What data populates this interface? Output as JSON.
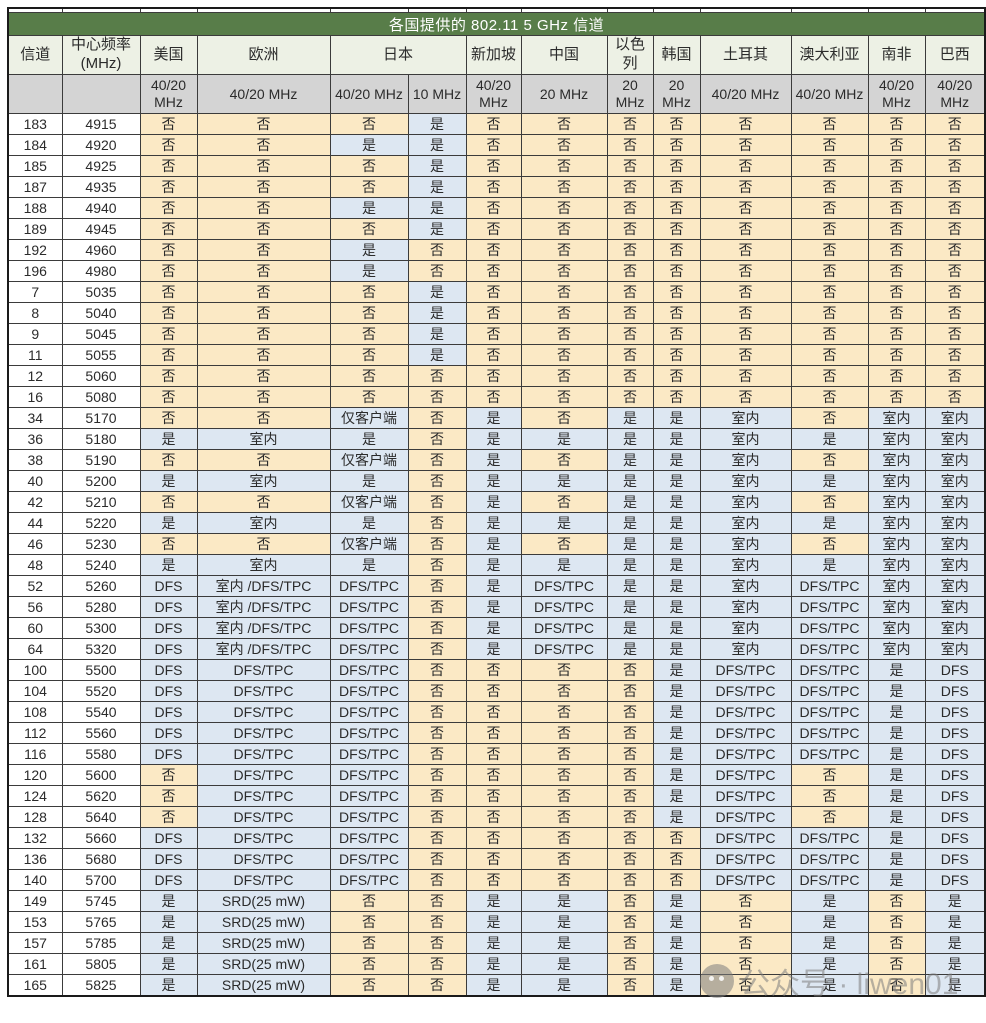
{
  "table": {
    "title": "各国提供的 802.11 5 GHz 信道",
    "header_groups": [
      {
        "label": "信道",
        "colspan": 1
      },
      {
        "label": "中心频率 (MHz)",
        "colspan": 1
      },
      {
        "label": "美国",
        "colspan": 1
      },
      {
        "label": "欧洲",
        "colspan": 1
      },
      {
        "label": "日本",
        "colspan": 2
      },
      {
        "label": "新加坡",
        "colspan": 1
      },
      {
        "label": "中国",
        "colspan": 1
      },
      {
        "label": "以色列",
        "colspan": 1
      },
      {
        "label": "韩国",
        "colspan": 1
      },
      {
        "label": "土耳其",
        "colspan": 1
      },
      {
        "label": "澳大利亚",
        "colspan": 1
      },
      {
        "label": "南非",
        "colspan": 1
      },
      {
        "label": "巴西",
        "colspan": 1
      }
    ],
    "subheader": [
      "",
      "",
      "40/20 MHz",
      "40/20 MHz",
      "40/20 MHz",
      "10 MHz",
      "40/20 MHz",
      "20 MHz",
      "20 MHz",
      "20 MHz",
      "40/20 MHz",
      "40/20 MHz",
      "40/20 MHz",
      "40/20 MHz"
    ],
    "rows": [
      {
        "channel": "183",
        "freq": "4915",
        "values": [
          "否",
          "否",
          "否",
          "是",
          "否",
          "否",
          "否",
          "否",
          "否",
          "否",
          "否",
          "否"
        ]
      },
      {
        "channel": "184",
        "freq": "4920",
        "values": [
          "否",
          "否",
          "是",
          "是",
          "否",
          "否",
          "否",
          "否",
          "否",
          "否",
          "否",
          "否"
        ]
      },
      {
        "channel": "185",
        "freq": "4925",
        "values": [
          "否",
          "否",
          "否",
          "是",
          "否",
          "否",
          "否",
          "否",
          "否",
          "否",
          "否",
          "否"
        ]
      },
      {
        "channel": "187",
        "freq": "4935",
        "values": [
          "否",
          "否",
          "否",
          "是",
          "否",
          "否",
          "否",
          "否",
          "否",
          "否",
          "否",
          "否"
        ]
      },
      {
        "channel": "188",
        "freq": "4940",
        "values": [
          "否",
          "否",
          "是",
          "是",
          "否",
          "否",
          "否",
          "否",
          "否",
          "否",
          "否",
          "否"
        ]
      },
      {
        "channel": "189",
        "freq": "4945",
        "values": [
          "否",
          "否",
          "否",
          "是",
          "否",
          "否",
          "否",
          "否",
          "否",
          "否",
          "否",
          "否"
        ]
      },
      {
        "channel": "192",
        "freq": "4960",
        "values": [
          "否",
          "否",
          "是",
          "否",
          "否",
          "否",
          "否",
          "否",
          "否",
          "否",
          "否",
          "否"
        ]
      },
      {
        "channel": "196",
        "freq": "4980",
        "values": [
          "否",
          "否",
          "是",
          "否",
          "否",
          "否",
          "否",
          "否",
          "否",
          "否",
          "否",
          "否"
        ]
      },
      {
        "channel": "7",
        "freq": "5035",
        "values": [
          "否",
          "否",
          "否",
          "是",
          "否",
          "否",
          "否",
          "否",
          "否",
          "否",
          "否",
          "否"
        ]
      },
      {
        "channel": "8",
        "freq": "5040",
        "values": [
          "否",
          "否",
          "否",
          "是",
          "否",
          "否",
          "否",
          "否",
          "否",
          "否",
          "否",
          "否"
        ]
      },
      {
        "channel": "9",
        "freq": "5045",
        "values": [
          "否",
          "否",
          "否",
          "是",
          "否",
          "否",
          "否",
          "否",
          "否",
          "否",
          "否",
          "否"
        ]
      },
      {
        "channel": "11",
        "freq": "5055",
        "values": [
          "否",
          "否",
          "否",
          "是",
          "否",
          "否",
          "否",
          "否",
          "否",
          "否",
          "否",
          "否"
        ]
      },
      {
        "channel": "12",
        "freq": "5060",
        "values": [
          "否",
          "否",
          "否",
          "否",
          "否",
          "否",
          "否",
          "否",
          "否",
          "否",
          "否",
          "否"
        ]
      },
      {
        "channel": "16",
        "freq": "5080",
        "values": [
          "否",
          "否",
          "否",
          "否",
          "否",
          "否",
          "否",
          "否",
          "否",
          "否",
          "否",
          "否"
        ]
      },
      {
        "channel": "34",
        "freq": "5170",
        "values": [
          "否",
          "否",
          "仅客户端",
          "否",
          "是",
          "否",
          "是",
          "是",
          "室内",
          "否",
          "室内",
          "室内"
        ]
      },
      {
        "channel": "36",
        "freq": "5180",
        "values": [
          "是",
          "室内",
          "是",
          "否",
          "是",
          "是",
          "是",
          "是",
          "室内",
          "是",
          "室内",
          "室内"
        ]
      },
      {
        "channel": "38",
        "freq": "5190",
        "values": [
          "否",
          "否",
          "仅客户端",
          "否",
          "是",
          "否",
          "是",
          "是",
          "室内",
          "否",
          "室内",
          "室内"
        ]
      },
      {
        "channel": "40",
        "freq": "5200",
        "values": [
          "是",
          "室内",
          "是",
          "否",
          "是",
          "是",
          "是",
          "是",
          "室内",
          "是",
          "室内",
          "室内"
        ]
      },
      {
        "channel": "42",
        "freq": "5210",
        "values": [
          "否",
          "否",
          "仅客户端",
          "否",
          "是",
          "否",
          "是",
          "是",
          "室内",
          "否",
          "室内",
          "室内"
        ]
      },
      {
        "channel": "44",
        "freq": "5220",
        "values": [
          "是",
          "室内",
          "是",
          "否",
          "是",
          "是",
          "是",
          "是",
          "室内",
          "是",
          "室内",
          "室内"
        ]
      },
      {
        "channel": "46",
        "freq": "5230",
        "values": [
          "否",
          "否",
          "仅客户端",
          "否",
          "是",
          "否",
          "是",
          "是",
          "室内",
          "否",
          "室内",
          "室内"
        ]
      },
      {
        "channel": "48",
        "freq": "5240",
        "values": [
          "是",
          "室内",
          "是",
          "否",
          "是",
          "是",
          "是",
          "是",
          "室内",
          "是",
          "室内",
          "室内"
        ]
      },
      {
        "channel": "52",
        "freq": "5260",
        "values": [
          "DFS",
          "室内 /DFS/TPC",
          "DFS/TPC",
          "否",
          "是",
          "DFS/TPC",
          "是",
          "是",
          "室内",
          "DFS/TPC",
          "室内",
          "室内"
        ]
      },
      {
        "channel": "56",
        "freq": "5280",
        "values": [
          "DFS",
          "室内 /DFS/TPC",
          "DFS/TPC",
          "否",
          "是",
          "DFS/TPC",
          "是",
          "是",
          "室内",
          "DFS/TPC",
          "室内",
          "室内"
        ]
      },
      {
        "channel": "60",
        "freq": "5300",
        "values": [
          "DFS",
          "室内 /DFS/TPC",
          "DFS/TPC",
          "否",
          "是",
          "DFS/TPC",
          "是",
          "是",
          "室内",
          "DFS/TPC",
          "室内",
          "室内"
        ]
      },
      {
        "channel": "64",
        "freq": "5320",
        "values": [
          "DFS",
          "室内 /DFS/TPC",
          "DFS/TPC",
          "否",
          "是",
          "DFS/TPC",
          "是",
          "是",
          "室内",
          "DFS/TPC",
          "室内",
          "室内"
        ]
      },
      {
        "channel": "100",
        "freq": "5500",
        "values": [
          "DFS",
          "DFS/TPC",
          "DFS/TPC",
          "否",
          "否",
          "否",
          "否",
          "是",
          "DFS/TPC",
          "DFS/TPC",
          "是",
          "DFS"
        ]
      },
      {
        "channel": "104",
        "freq": "5520",
        "values": [
          "DFS",
          "DFS/TPC",
          "DFS/TPC",
          "否",
          "否",
          "否",
          "否",
          "是",
          "DFS/TPC",
          "DFS/TPC",
          "是",
          "DFS"
        ]
      },
      {
        "channel": "108",
        "freq": "5540",
        "values": [
          "DFS",
          "DFS/TPC",
          "DFS/TPC",
          "否",
          "否",
          "否",
          "否",
          "是",
          "DFS/TPC",
          "DFS/TPC",
          "是",
          "DFS"
        ]
      },
      {
        "channel": "112",
        "freq": "5560",
        "values": [
          "DFS",
          "DFS/TPC",
          "DFS/TPC",
          "否",
          "否",
          "否",
          "否",
          "是",
          "DFS/TPC",
          "DFS/TPC",
          "是",
          "DFS"
        ]
      },
      {
        "channel": "116",
        "freq": "5580",
        "values": [
          "DFS",
          "DFS/TPC",
          "DFS/TPC",
          "否",
          "否",
          "否",
          "否",
          "是",
          "DFS/TPC",
          "DFS/TPC",
          "是",
          "DFS"
        ]
      },
      {
        "channel": "120",
        "freq": "5600",
        "values": [
          "否",
          "DFS/TPC",
          "DFS/TPC",
          "否",
          "否",
          "否",
          "否",
          "是",
          "DFS/TPC",
          "否",
          "是",
          "DFS"
        ]
      },
      {
        "channel": "124",
        "freq": "5620",
        "values": [
          "否",
          "DFS/TPC",
          "DFS/TPC",
          "否",
          "否",
          "否",
          "否",
          "是",
          "DFS/TPC",
          "否",
          "是",
          "DFS"
        ]
      },
      {
        "channel": "128",
        "freq": "5640",
        "values": [
          "否",
          "DFS/TPC",
          "DFS/TPC",
          "否",
          "否",
          "否",
          "否",
          "是",
          "DFS/TPC",
          "否",
          "是",
          "DFS"
        ]
      },
      {
        "channel": "132",
        "freq": "5660",
        "values": [
          "DFS",
          "DFS/TPC",
          "DFS/TPC",
          "否",
          "否",
          "否",
          "否",
          "否",
          "DFS/TPC",
          "DFS/TPC",
          "是",
          "DFS"
        ]
      },
      {
        "channel": "136",
        "freq": "5680",
        "values": [
          "DFS",
          "DFS/TPC",
          "DFS/TPC",
          "否",
          "否",
          "否",
          "否",
          "否",
          "DFS/TPC",
          "DFS/TPC",
          "是",
          "DFS"
        ]
      },
      {
        "channel": "140",
        "freq": "5700",
        "values": [
          "DFS",
          "DFS/TPC",
          "DFS/TPC",
          "否",
          "否",
          "否",
          "否",
          "否",
          "DFS/TPC",
          "DFS/TPC",
          "是",
          "DFS"
        ]
      },
      {
        "channel": "149",
        "freq": "5745",
        "values": [
          "是",
          "SRD(25 mW)",
          "否",
          "否",
          "是",
          "是",
          "否",
          "是",
          "否",
          "是",
          "否",
          "是"
        ]
      },
      {
        "channel": "153",
        "freq": "5765",
        "values": [
          "是",
          "SRD(25 mW)",
          "否",
          "否",
          "是",
          "是",
          "否",
          "是",
          "否",
          "是",
          "否",
          "是"
        ]
      },
      {
        "channel": "157",
        "freq": "5785",
        "values": [
          "是",
          "SRD(25 mW)",
          "否",
          "否",
          "是",
          "是",
          "否",
          "是",
          "否",
          "是",
          "否",
          "是"
        ]
      },
      {
        "channel": "161",
        "freq": "5805",
        "values": [
          "是",
          "SRD(25 mW)",
          "否",
          "否",
          "是",
          "是",
          "否",
          "是",
          "否",
          "是",
          "否",
          "是"
        ]
      },
      {
        "channel": "165",
        "freq": "5825",
        "values": [
          "是",
          "SRD(25 mW)",
          "否",
          "否",
          "是",
          "是",
          "否",
          "是",
          "否",
          "是",
          "否",
          "是"
        ]
      }
    ]
  },
  "colors": {
    "title_bg": "#587d49",
    "title_text": "#ffffff",
    "header_bg": "#edf1e5",
    "subheader_bg": "#d4d4d4",
    "no_bg": "#fbe9c5",
    "yes_bg": "#dde7f2"
  },
  "watermark": {
    "icon": "wechat-icon",
    "text": "公众号 · liwen01"
  }
}
